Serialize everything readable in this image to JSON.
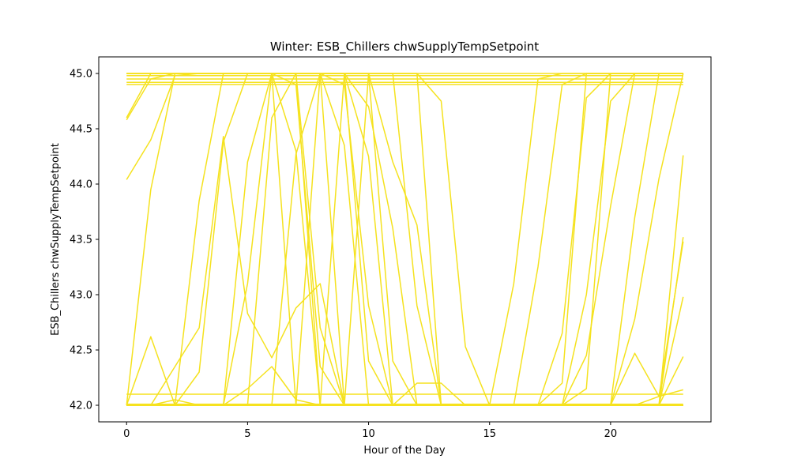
{
  "chart_data": {
    "type": "line",
    "title": "Winter: ESB_Chillers chwSupplyTempSetpoint",
    "xlabel": "Hour of the Day",
    "ylabel": "ESB_Chillers chwSupplyTempSetpoint",
    "xlim": [
      -1.15,
      24.15
    ],
    "ylim": [
      41.85,
      45.15
    ],
    "xticks": [
      0,
      5,
      10,
      15,
      20
    ],
    "xtick_labels": [
      "0",
      "5",
      "10",
      "15",
      "20"
    ],
    "yticks": [
      42.0,
      42.5,
      43.0,
      43.5,
      44.0,
      44.5,
      45.0
    ],
    "ytick_labels": [
      "42.0",
      "42.5",
      "43.0",
      "43.5",
      "44.0",
      "44.5",
      "45.0"
    ],
    "grid": false,
    "line_color": "#f5e21f",
    "x": [
      0,
      1,
      2,
      3,
      4,
      5,
      6,
      7,
      8,
      9,
      10,
      11,
      12,
      13,
      14,
      15,
      16,
      17,
      18,
      19,
      20,
      21,
      22,
      23
    ],
    "series": [
      {
        "values": [
          45.0,
          45.0,
          45.0,
          45.0,
          45.0,
          45.0,
          45.0,
          45.0,
          45.0,
          45.0,
          45.0,
          45.0,
          45.0,
          45.0,
          45.0,
          45.0,
          45.0,
          45.0,
          45.0,
          45.0,
          45.0,
          45.0,
          45.0,
          45.0
        ]
      },
      {
        "values": [
          44.98,
          44.98,
          44.98,
          44.98,
          44.98,
          44.98,
          44.98,
          44.98,
          44.98,
          44.98,
          44.98,
          44.98,
          44.98,
          44.98,
          44.98,
          44.98,
          44.98,
          44.98,
          44.98,
          44.98,
          44.98,
          44.98,
          44.98,
          44.98
        ]
      },
      {
        "values": [
          44.95,
          44.95,
          44.95,
          44.95,
          44.95,
          44.95,
          44.95,
          44.95,
          44.95,
          44.95,
          44.95,
          44.95,
          44.95,
          44.95,
          44.95,
          44.95,
          44.95,
          44.95,
          44.95,
          44.95,
          44.95,
          44.95,
          44.95,
          44.95
        ]
      },
      {
        "values": [
          44.92,
          44.92,
          44.92,
          44.92,
          44.92,
          44.92,
          44.92,
          44.92,
          44.92,
          44.92,
          44.92,
          44.92,
          44.92,
          44.92,
          44.92,
          44.92,
          44.92,
          44.92,
          44.92,
          44.92,
          44.92,
          44.92,
          44.92,
          44.92
        ]
      },
      {
        "values": [
          44.9,
          44.9,
          44.9,
          44.9,
          44.9,
          44.9,
          44.9,
          44.9,
          44.9,
          44.9,
          44.9,
          44.9,
          44.9,
          44.9,
          44.9,
          44.9,
          44.9,
          44.9,
          44.9,
          44.9,
          44.9,
          44.9,
          44.9,
          44.9
        ]
      },
      {
        "values": [
          42.1,
          42.1,
          42.1,
          42.1,
          42.1,
          42.1,
          42.1,
          42.1,
          42.1,
          42.1,
          42.1,
          42.1,
          42.1,
          42.1,
          42.1,
          42.1,
          42.1,
          42.1,
          42.1,
          42.1,
          42.1,
          42.1,
          42.1,
          42.1
        ]
      },
      {
        "values": [
          42.0,
          42.0,
          42.0,
          42.0,
          42.0,
          42.0,
          42.0,
          42.0,
          42.0,
          42.0,
          42.0,
          42.0,
          42.0,
          42.0,
          42.0,
          42.0,
          42.0,
          42.0,
          42.0,
          42.0,
          42.0,
          42.0,
          42.0,
          42.0
        ]
      },
      {
        "values": [
          42.01,
          42.01,
          42.01,
          42.01,
          42.01,
          42.01,
          42.01,
          42.01,
          42.01,
          42.01,
          42.01,
          42.01,
          42.01,
          42.01,
          42.01,
          42.01,
          42.01,
          42.01,
          42.01,
          42.01,
          42.01,
          42.01,
          42.01,
          42.01
        ]
      },
      {
        "values": [
          44.6,
          45.0,
          45.0,
          45.0,
          45.0,
          45.0,
          45.0,
          44.9,
          42.35,
          42.0,
          42.0,
          42.0,
          42.0,
          42.0,
          42.0,
          42.0,
          42.0,
          42.0,
          42.0,
          42.0,
          42.0,
          42.0,
          42.0,
          43.52
        ]
      },
      {
        "values": [
          44.58,
          44.95,
          45.0,
          45.0,
          45.0,
          45.0,
          45.0,
          45.0,
          45.0,
          44.35,
          42.0,
          42.0,
          42.0,
          42.0,
          42.0,
          42.0,
          42.0,
          42.0,
          42.0,
          42.0,
          42.0,
          42.0,
          42.0,
          42.44
        ]
      },
      {
        "values": [
          44.04,
          44.4,
          44.98,
          45.0,
          45.0,
          45.0,
          45.0,
          45.0,
          45.0,
          45.0,
          44.25,
          42.0,
          42.0,
          42.0,
          42.0,
          42.0,
          42.0,
          42.0,
          42.0,
          42.0,
          42.0,
          42.0,
          42.0,
          42.98
        ]
      },
      {
        "values": [
          42.0,
          42.62,
          42.0,
          42.0,
          42.0,
          42.0,
          42.0,
          42.0,
          42.0,
          42.0,
          42.0,
          42.0,
          42.0,
          42.0,
          42.0,
          42.0,
          42.0,
          42.0,
          42.0,
          42.0,
          42.0,
          42.0,
          42.0,
          44.26
        ]
      },
      {
        "values": [
          42.0,
          43.95,
          45.0,
          45.0,
          45.0,
          45.0,
          45.0,
          42.0,
          42.0,
          42.0,
          42.0,
          42.0,
          42.0,
          42.0,
          42.0,
          42.0,
          42.0,
          42.0,
          42.0,
          42.0,
          42.0,
          42.0,
          42.08,
          43.48
        ]
      },
      {
        "values": [
          42.0,
          42.0,
          42.05,
          42.0,
          42.0,
          42.15,
          42.35,
          42.05,
          42.0,
          42.0,
          42.0,
          42.0,
          42.0,
          42.0,
          42.0,
          42.0,
          42.0,
          42.0,
          42.0,
          42.0,
          42.0,
          42.47,
          42.08,
          42.14
        ]
      },
      {
        "values": [
          42.0,
          42.0,
          42.0,
          43.85,
          45.0,
          45.0,
          45.0,
          44.3,
          42.0,
          42.0,
          42.0,
          42.0,
          42.0,
          42.0,
          42.0,
          42.0,
          42.0,
          42.0,
          42.0,
          42.0,
          42.0,
          42.0,
          42.0,
          42.0
        ]
      },
      {
        "values": [
          42.0,
          42.0,
          42.0,
          42.3,
          44.38,
          45.0,
          45.0,
          45.0,
          42.7,
          42.0,
          42.0,
          42.0,
          42.0,
          42.0,
          42.0,
          42.0,
          42.0,
          42.0,
          42.0,
          42.0,
          42.0,
          42.0,
          42.0,
          42.0
        ]
      },
      {
        "values": [
          42.0,
          42.0,
          42.35,
          42.7,
          44.43,
          42.83,
          42.43,
          42.88,
          43.1,
          42.0,
          42.0,
          42.0,
          42.0,
          42.0,
          42.0,
          42.0,
          42.0,
          42.0,
          42.0,
          42.0,
          42.0,
          42.0,
          42.0,
          42.0
        ]
      },
      {
        "values": [
          42.0,
          42.0,
          42.0,
          42.0,
          42.0,
          44.2,
          45.0,
          45.0,
          42.0,
          42.0,
          42.0,
          42.0,
          42.0,
          42.0,
          42.0,
          42.0,
          42.0,
          42.0,
          42.0,
          42.0,
          42.0,
          42.0,
          42.0,
          42.0
        ]
      },
      {
        "values": [
          42.0,
          42.0,
          42.0,
          42.0,
          42.0,
          43.1,
          45.0,
          45.0,
          45.0,
          42.0,
          42.0,
          42.0,
          42.0,
          42.0,
          42.0,
          42.0,
          42.0,
          42.0,
          42.0,
          42.0,
          42.0,
          42.0,
          42.0,
          42.0
        ]
      },
      {
        "values": [
          42.0,
          42.0,
          42.0,
          42.0,
          42.0,
          42.0,
          44.6,
          45.0,
          45.0,
          45.0,
          42.4,
          42.0,
          42.0,
          42.0,
          42.0,
          42.0,
          42.0,
          42.0,
          42.0,
          42.0,
          42.0,
          42.0,
          42.0,
          42.0
        ]
      },
      {
        "values": [
          42.0,
          42.0,
          42.0,
          42.0,
          42.0,
          42.0,
          42.0,
          44.27,
          45.0,
          45.0,
          45.0,
          42.4,
          42.0,
          42.0,
          42.0,
          42.0,
          42.0,
          42.0,
          42.0,
          42.0,
          42.0,
          42.0,
          42.0,
          42.0
        ]
      },
      {
        "values": [
          42.0,
          42.0,
          42.0,
          42.0,
          42.0,
          42.0,
          42.0,
          42.0,
          45.0,
          45.0,
          44.7,
          43.6,
          42.0,
          42.0,
          42.0,
          42.0,
          42.0,
          42.0,
          42.0,
          42.0,
          42.0,
          42.0,
          42.0,
          42.0
        ]
      },
      {
        "values": [
          42.0,
          42.0,
          42.0,
          42.0,
          42.0,
          42.0,
          42.0,
          42.0,
          42.0,
          45.0,
          45.0,
          44.2,
          43.63,
          42.0,
          42.0,
          42.0,
          42.0,
          42.0,
          42.0,
          42.0,
          42.0,
          42.0,
          42.0,
          42.0
        ]
      },
      {
        "values": [
          42.0,
          42.0,
          42.0,
          42.0,
          42.0,
          42.0,
          42.0,
          42.0,
          42.0,
          42.0,
          45.0,
          45.0,
          45.0,
          44.75,
          42.53,
          42.0,
          42.0,
          42.0,
          42.0,
          42.0,
          42.0,
          42.0,
          42.0,
          42.0
        ]
      },
      {
        "values": [
          42.0,
          42.0,
          42.0,
          42.0,
          42.0,
          42.0,
          42.0,
          42.0,
          42.0,
          42.0,
          42.0,
          42.0,
          42.2,
          42.2,
          42.0,
          42.0,
          42.0,
          42.0,
          42.0,
          42.0,
          42.0,
          42.0,
          42.0,
          42.0
        ]
      },
      {
        "values": [
          42.0,
          42.0,
          42.0,
          42.0,
          42.0,
          42.0,
          42.0,
          42.0,
          42.0,
          42.0,
          42.0,
          42.0,
          42.0,
          42.0,
          42.0,
          42.0,
          43.1,
          44.95,
          45.0,
          45.0,
          45.0,
          45.0,
          45.0,
          45.0
        ]
      },
      {
        "values": [
          42.0,
          42.0,
          42.0,
          42.0,
          42.0,
          42.0,
          42.0,
          42.0,
          42.0,
          42.0,
          42.0,
          42.0,
          42.0,
          42.0,
          42.0,
          42.0,
          42.0,
          43.25,
          44.9,
          45.0,
          45.0,
          45.0,
          45.0,
          45.0
        ]
      },
      {
        "values": [
          42.0,
          42.0,
          42.0,
          42.0,
          42.0,
          42.0,
          42.0,
          42.0,
          42.0,
          42.0,
          42.0,
          42.0,
          42.0,
          42.0,
          42.0,
          42.0,
          42.0,
          42.0,
          42.65,
          44.78,
          45.0,
          45.0,
          45.0,
          45.0
        ]
      },
      {
        "values": [
          42.0,
          42.0,
          42.0,
          42.0,
          42.0,
          42.0,
          42.0,
          42.0,
          42.0,
          42.0,
          42.0,
          42.0,
          42.0,
          42.0,
          42.0,
          42.0,
          42.0,
          42.0,
          42.0,
          43.0,
          44.75,
          45.0,
          45.0,
          45.0
        ]
      },
      {
        "values": [
          42.0,
          42.0,
          42.0,
          42.0,
          42.0,
          42.0,
          42.0,
          42.0,
          42.0,
          42.0,
          42.0,
          42.0,
          42.0,
          42.0,
          42.0,
          42.0,
          42.0,
          42.0,
          42.0,
          42.45,
          43.8,
          45.0,
          45.0,
          45.0
        ]
      },
      {
        "values": [
          42.0,
          42.0,
          42.0,
          42.0,
          42.0,
          42.0,
          42.0,
          42.0,
          42.0,
          42.0,
          42.0,
          42.0,
          42.0,
          42.0,
          42.0,
          42.0,
          42.0,
          42.0,
          42.0,
          42.0,
          42.0,
          43.7,
          45.0,
          45.0
        ]
      },
      {
        "values": [
          42.0,
          42.0,
          42.0,
          42.0,
          42.0,
          42.0,
          42.0,
          42.0,
          42.0,
          42.0,
          42.0,
          42.0,
          42.0,
          42.0,
          42.0,
          42.0,
          42.0,
          42.0,
          42.0,
          42.0,
          42.0,
          42.78,
          44.05,
          45.0
        ]
      },
      {
        "values": [
          42.0,
          42.0,
          42.0,
          42.0,
          42.0,
          42.0,
          42.0,
          42.0,
          42.0,
          42.0,
          42.0,
          42.0,
          42.0,
          42.0,
          42.0,
          42.0,
          42.0,
          42.0,
          42.0,
          42.15,
          45.0,
          45.0,
          45.0,
          45.0
        ]
      },
      {
        "values": [
          42.0,
          42.0,
          42.0,
          42.0,
          42.0,
          42.0,
          42.0,
          42.0,
          42.0,
          42.0,
          42.0,
          42.0,
          42.0,
          42.0,
          42.0,
          42.0,
          42.0,
          42.0,
          42.2,
          45.0,
          45.0,
          45.0,
          45.0,
          45.0
        ]
      },
      {
        "values": [
          45.0,
          45.0,
          45.0,
          45.0,
          45.0,
          45.0,
          45.0,
          45.0,
          45.0,
          44.9,
          42.9,
          42.0,
          42.0,
          42.0,
          42.0,
          42.0,
          42.0,
          42.0,
          42.0,
          42.0,
          42.0,
          42.0,
          42.0,
          42.0
        ]
      },
      {
        "values": [
          45.0,
          45.0,
          45.0,
          45.0,
          45.0,
          45.0,
          45.0,
          45.0,
          45.0,
          45.0,
          45.0,
          45.0,
          45.0,
          42.0,
          42.0,
          42.0,
          42.0,
          42.0,
          42.0,
          42.0,
          42.0,
          42.0,
          42.0,
          42.0
        ]
      },
      {
        "values": [
          45.0,
          45.0,
          45.0,
          45.0,
          45.0,
          45.0,
          45.0,
          45.0,
          45.0,
          45.0,
          45.0,
          45.0,
          42.9,
          42.0,
          42.0,
          42.0,
          42.0,
          42.0,
          42.0,
          42.0,
          42.0,
          42.0,
          42.0,
          42.0
        ]
      }
    ]
  }
}
